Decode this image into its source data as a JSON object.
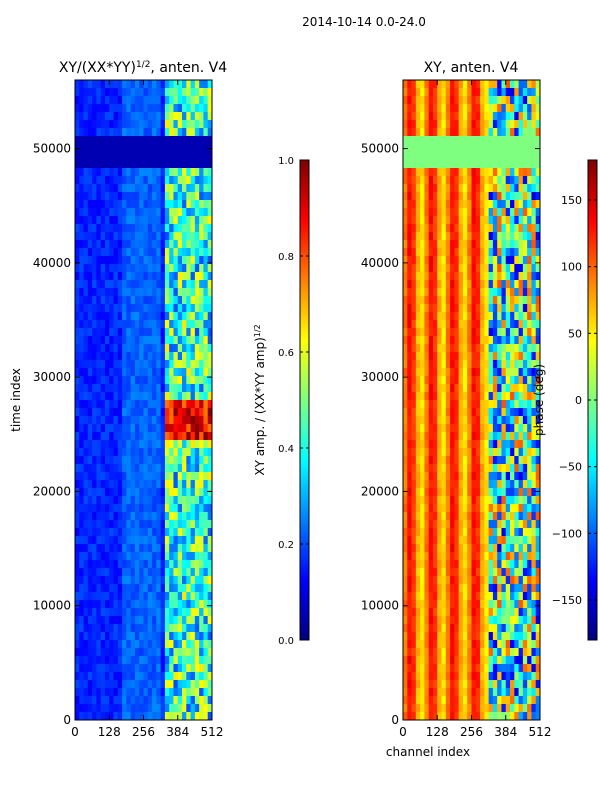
{
  "figure_title": "2014-10-14 0.0-24.0",
  "colors": {
    "jet_stops": [
      "#00007f",
      "#0000ff",
      "#007fff",
      "#00ffff",
      "#7fff7f",
      "#ffff00",
      "#ff7f00",
      "#ff0000",
      "#7f0000"
    ]
  },
  "chart_data": [
    {
      "type": "heatmap",
      "title": "XY/(XX*YY)",
      "title_sup": "1/2",
      "title_suffix": ", anten. V4",
      "ylabel": "time index",
      "xlim": [
        0,
        512
      ],
      "ylim": [
        0,
        56000
      ],
      "xticks": [
        0,
        128,
        256,
        384,
        512
      ],
      "yticks": [
        0,
        10000,
        20000,
        30000,
        40000,
        50000
      ],
      "colorbar": {
        "label": "XY amp. / (XX*YY amp)",
        "label_sup": "1/2",
        "range": [
          0.0,
          1.0
        ],
        "ticks": [
          0.0,
          0.2,
          0.4,
          0.6,
          0.8,
          1.0
        ],
        "tick_labels": [
          "0.0",
          "0.2",
          "0.4",
          "0.6",
          "0.8",
          "1.0"
        ]
      }
    },
    {
      "type": "heatmap",
      "title": "XY, anten. V4",
      "xlabel": "channel index",
      "xlim": [
        0,
        512
      ],
      "ylim": [
        0,
        56000
      ],
      "xticks": [
        0,
        128,
        256,
        384,
        512
      ],
      "yticks": [
        0,
        10000,
        20000,
        30000,
        40000,
        50000
      ],
      "colorbar": {
        "label": "phase (deg)",
        "range": [
          -180,
          180
        ],
        "ticks": [
          -150,
          -100,
          -50,
          0,
          50,
          100,
          150
        ],
        "tick_labels": [
          "−150",
          "−100",
          "−50",
          "0",
          "50",
          "100",
          "150"
        ]
      }
    }
  ]
}
